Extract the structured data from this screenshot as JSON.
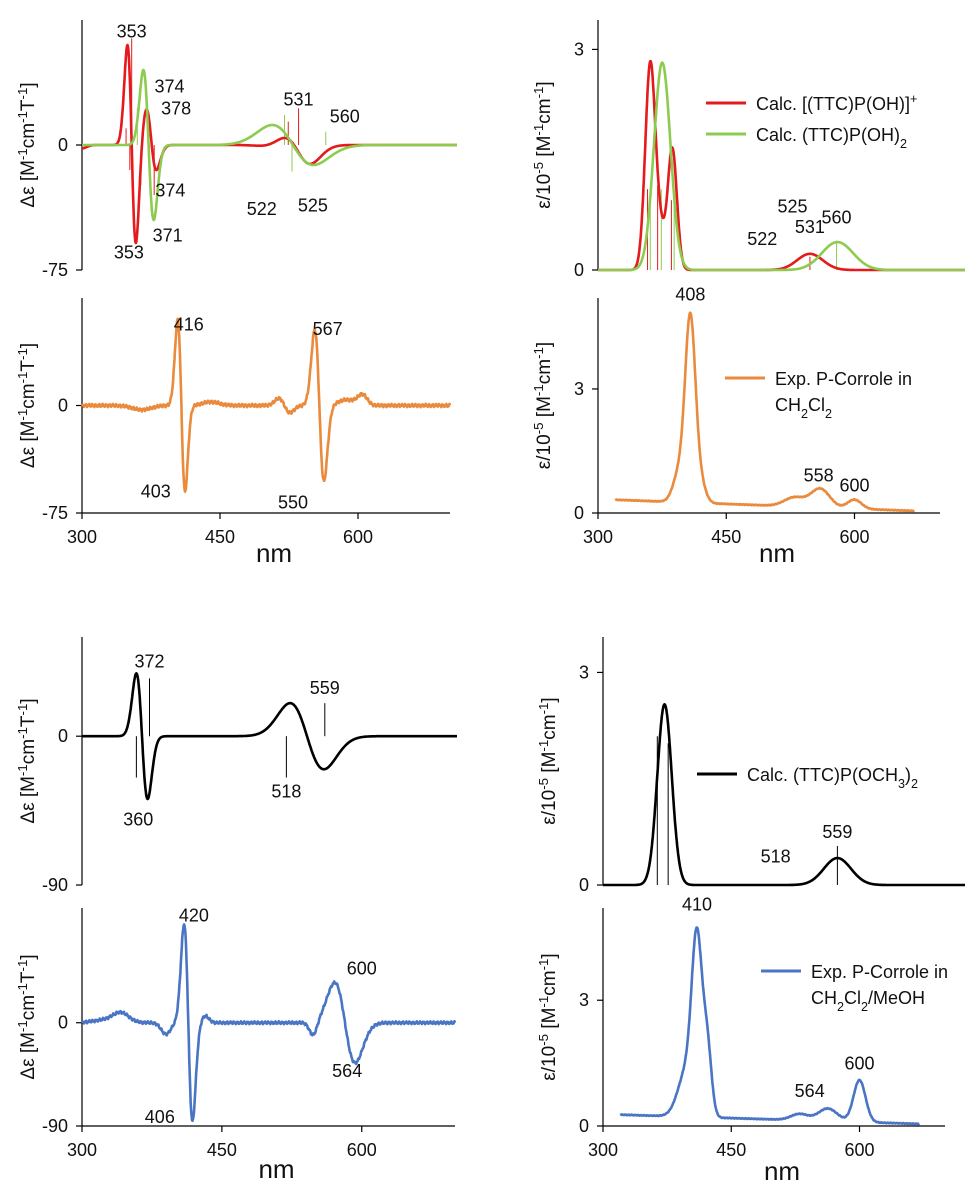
{
  "colors": {
    "red": "#e41a1c",
    "green": "#8dcb50",
    "orange": "#ea8a3c",
    "black": "#000000",
    "blue": "#4a74c4"
  },
  "chart_data": [
    {
      "id": "calc-ttc-poh-mcd",
      "type": "line",
      "ylabel": "Δε [M⁻¹cm⁻¹T⁻¹]",
      "xlim": [
        300,
        700
      ],
      "ylim": [
        -75,
        75
      ],
      "yticks": [
        {
          "v": 0,
          "label": "0"
        },
        {
          "v": -75,
          "label": "-75"
        }
      ],
      "series": [
        {
          "color": "red",
          "peaks": [
            {
              "type": "a",
              "x0": 353,
              "a": 60,
              "w": 4.5
            },
            {
              "type": "a",
              "x0": 374,
              "a": 22,
              "w": 5.5
            },
            {
              "type": "g",
              "x0": 522,
              "a": -5,
              "w": 18
            },
            {
              "type": "a",
              "x0": 531,
              "a": 9,
              "w": 14
            },
            {
              "type": "g",
              "x0": 300,
              "a": -2,
              "w": 5
            },
            {
              "type": "g",
              "x0": 380,
              "a": 7,
              "w": 4
            }
          ]
        },
        {
          "color": "green",
          "peaks": [
            {
              "type": "a",
              "x0": 371,
              "a": 45,
              "w": 5.5
            },
            {
              "type": "a",
              "x0": 525,
              "a": 12,
              "w": 22
            }
          ]
        }
      ],
      "sticks": [
        {
          "x": 347,
          "y": 10,
          "color": "red"
        },
        {
          "x": 351,
          "y": -15,
          "color": "red"
        },
        {
          "x": 353,
          "y": 64,
          "color": "red"
        },
        {
          "x": 359,
          "y": 22,
          "color": "green"
        },
        {
          "x": 363,
          "y": -24,
          "color": "green"
        },
        {
          "x": 372,
          "y": -22,
          "color": "red"
        },
        {
          "x": 377,
          "y": -30,
          "color": "red"
        },
        {
          "x": 516,
          "y": 18,
          "color": "green"
        },
        {
          "x": 520,
          "y": 14,
          "color": "red"
        },
        {
          "x": 524,
          "y": -16,
          "color": "green"
        },
        {
          "x": 531,
          "y": 22,
          "color": "red"
        },
        {
          "x": 560,
          "y": 8,
          "color": "green"
        }
      ],
      "annotations": [
        {
          "x": 353,
          "y": 61,
          "text": "353",
          "pos": "above"
        },
        {
          "x": 373,
          "y": 28,
          "text": "374",
          "pos": "above-right"
        },
        {
          "x": 378,
          "y": 22,
          "text": "378",
          "pos": "right"
        },
        {
          "x": 374,
          "y": -19,
          "text": "374",
          "pos": "below-right"
        },
        {
          "x": 371,
          "y": -46,
          "text": "371",
          "pos": "below-right"
        },
        {
          "x": 350,
          "y": -56,
          "text": "353",
          "pos": "below"
        },
        {
          "x": 531,
          "y": 20,
          "text": "531",
          "pos": "above"
        },
        {
          "x": 560,
          "y": 10,
          "text": "560",
          "pos": "above-right"
        },
        {
          "x": 512,
          "y": -30,
          "text": "522",
          "pos": "below-left"
        },
        {
          "x": 526,
          "y": -28,
          "text": "525",
          "pos": "below-right"
        }
      ]
    },
    {
      "id": "calc-ttc-poh-abs",
      "type": "line",
      "ylabel": "ε/10⁻⁵ [M⁻¹cm⁻¹]",
      "xlim": [
        300,
        700
      ],
      "ylim": [
        0,
        3.4
      ],
      "yticks": [
        {
          "v": 3,
          "label": "3"
        },
        {
          "v": 0,
          "label": "0"
        }
      ],
      "legend": [
        {
          "color": "red",
          "label": "Calc. [(TTC)P(OH)]⁺"
        },
        {
          "color": "green",
          "label": "Calc. (TTC)P(OH)₂"
        }
      ],
      "series": [
        {
          "color": "red",
          "peaks": [
            {
              "type": "g",
              "x0": 357,
              "a": 2.8,
              "w": 5.5
            },
            {
              "type": "g",
              "x0": 381,
              "a": 1.65,
              "w": 5
            },
            {
              "type": "g",
              "x0": 368,
              "a": 0.45,
              "w": 5
            },
            {
              "type": "g",
              "x0": 531,
              "a": 0.22,
              "w": 14
            }
          ]
        },
        {
          "color": "green",
          "peaks": [
            {
              "type": "g",
              "x0": 370,
              "a": 2.82,
              "w": 9
            },
            {
              "type": "g",
              "x0": 561,
              "a": 0.38,
              "w": 17
            }
          ]
        }
      ],
      "sticks": [
        {
          "x": 354,
          "y": 1.1,
          "color": "red"
        },
        {
          "x": 357,
          "y": 1.05,
          "color": "green"
        },
        {
          "x": 365,
          "y": 1.15,
          "color": "red"
        },
        {
          "x": 369,
          "y": 1.1,
          "color": "green"
        },
        {
          "x": 380,
          "y": 0.95,
          "color": "red"
        },
        {
          "x": 383,
          "y": 1.0,
          "color": "green"
        },
        {
          "x": 531,
          "y": 0.18,
          "color": "red"
        },
        {
          "x": 560,
          "y": 0.4,
          "color": "green"
        }
      ],
      "annotations": [
        {
          "x": 512,
          "y": 0.7,
          "text": "525",
          "pos": "above"
        },
        {
          "x": 502,
          "y": 0.42,
          "text": "522",
          "pos": "left"
        },
        {
          "x": 531,
          "y": 0.42,
          "text": "531",
          "pos": "above"
        },
        {
          "x": 560,
          "y": 0.55,
          "text": "560",
          "pos": "above"
        }
      ]
    },
    {
      "id": "exp-p-corrole-ch2cl2-mcd",
      "type": "line",
      "ylabel": "Δε [M⁻¹cm⁻¹T⁻¹]",
      "xlabel": "nm",
      "xlim": [
        300,
        700
      ],
      "ylim": [
        -75,
        75
      ],
      "xticks": [
        300,
        450,
        600
      ],
      "yticks": [
        {
          "v": 0,
          "label": "0"
        },
        {
          "v": -75,
          "label": "-75"
        }
      ],
      "series": [
        {
          "color": "orange",
          "peaks": [
            {
              "type": "g",
              "x0": 365,
              "a": -3,
              "w": 10
            },
            {
              "type": "a",
              "x0": 408,
              "a": 60,
              "w": 4
            },
            {
              "type": "g",
              "x0": 440,
              "a": 2.5,
              "w": 9
            },
            {
              "type": "a",
              "x0": 520,
              "a": 5,
              "w": 6
            },
            {
              "type": "a",
              "x0": 558,
              "a": 53,
              "w": 5
            },
            {
              "type": "g",
              "x0": 605,
              "a": 7,
              "w": 5
            },
            {
              "type": "g",
              "x0": 588,
              "a": 4,
              "w": 10
            }
          ],
          "noise": 1.2
        }
      ],
      "annotations": [
        {
          "x": 416,
          "y": 48,
          "text": "416",
          "pos": "above"
        },
        {
          "x": 403,
          "y": -60,
          "text": "403",
          "pos": "left"
        },
        {
          "x": 567,
          "y": 45,
          "text": "567",
          "pos": "above"
        },
        {
          "x": 550,
          "y": -58,
          "text": "550",
          "pos": "below-left"
        }
      ]
    },
    {
      "id": "exp-p-corrole-ch2cl2-abs",
      "type": "line",
      "ylabel": "ε/10⁻⁵ [M⁻¹cm⁻¹]",
      "xlabel": "nm",
      "xlim": [
        300,
        700
      ],
      "ylim": [
        0,
        5.2
      ],
      "xticks": [
        300,
        450,
        600
      ],
      "yticks": [
        {
          "v": 3,
          "label": "3"
        },
        {
          "v": 0,
          "label": "0"
        }
      ],
      "legend": [
        {
          "color": "orange",
          "label": "Exp. P-Corrole in CH₂Cl₂"
        }
      ],
      "series": [
        {
          "color": "orange",
          "domain": [
            320,
            670
          ],
          "base": {
            "from": 0.32,
            "to": 0.05
          },
          "peaks": [
            {
              "type": "g",
              "x0": 408,
              "a": 4.4,
              "w": 6
            },
            {
              "type": "g",
              "x0": 395,
              "a": 0.7,
              "w": 7
            },
            {
              "type": "g",
              "x0": 420,
              "a": 0.45,
              "w": 6
            },
            {
              "type": "g",
              "x0": 530,
              "a": 0.22,
              "w": 12
            },
            {
              "type": "g",
              "x0": 560,
              "a": 0.45,
              "w": 11
            },
            {
              "type": "g",
              "x0": 600,
              "a": 0.22,
              "w": 8
            }
          ],
          "noise": 0.01
        }
      ],
      "annotations": [
        {
          "x": 408,
          "y": 5.0,
          "text": "408",
          "pos": "above"
        },
        {
          "x": 558,
          "y": 0.62,
          "text": "558",
          "pos": "above"
        },
        {
          "x": 600,
          "y": 0.38,
          "text": "600",
          "pos": "above"
        }
      ]
    },
    {
      "id": "calc-ttc-poch3-mcd",
      "type": "line",
      "ylabel": "Δε [M⁻¹cm⁻¹T⁻¹]",
      "xlim": [
        300,
        700
      ],
      "ylim": [
        -90,
        60
      ],
      "yticks": [
        {
          "v": 0,
          "label": "0"
        },
        {
          "v": -90,
          "label": "-90"
        }
      ],
      "series": [
        {
          "color": "black",
          "peaks": [
            {
              "type": "a",
              "x0": 364,
              "a": 38,
              "w": 6
            },
            {
              "type": "a",
              "x0": 540,
              "a": 20,
              "w": 18
            }
          ]
        }
      ],
      "sticks": [
        {
          "x": 358,
          "y": -25,
          "color": "black"
        },
        {
          "x": 372,
          "y": 35,
          "color": "black"
        },
        {
          "x": 518,
          "y": -25,
          "color": "black"
        },
        {
          "x": 559,
          "y": 20,
          "color": "black"
        }
      ],
      "annotations": [
        {
          "x": 372,
          "y": 38,
          "text": "372",
          "pos": "above"
        },
        {
          "x": 360,
          "y": -42,
          "text": "360",
          "pos": "below"
        },
        {
          "x": 559,
          "y": 22,
          "text": "559",
          "pos": "above"
        },
        {
          "x": 518,
          "y": -25,
          "text": "518",
          "pos": "below"
        }
      ]
    },
    {
      "id": "calc-ttc-poch3-abs",
      "type": "line",
      "ylabel": "ε/10⁻⁵ [M⁻¹cm⁻¹]",
      "xlim": [
        300,
        700
      ],
      "ylim": [
        0,
        3.5
      ],
      "yticks": [
        {
          "v": 3,
          "label": "3"
        },
        {
          "v": 0,
          "label": "0"
        }
      ],
      "legend": [
        {
          "color": "black",
          "label": "Calc. (TTC)P(OCH₃)₂"
        }
      ],
      "series": [
        {
          "color": "black",
          "peaks": [
            {
              "type": "g",
              "x0": 368,
              "a": 2.55,
              "w": 8
            },
            {
              "type": "g",
              "x0": 559,
              "a": 0.38,
              "w": 15
            }
          ]
        }
      ],
      "sticks": [
        {
          "x": 360,
          "y": 2.1,
          "color": "black"
        },
        {
          "x": 372,
          "y": 2.0,
          "color": "black"
        },
        {
          "x": 559,
          "y": 0.55,
          "color": "black"
        }
      ],
      "annotations": [
        {
          "x": 514,
          "y": 0.4,
          "text": "518",
          "pos": "left"
        },
        {
          "x": 559,
          "y": 0.58,
          "text": "559",
          "pos": "above"
        }
      ]
    },
    {
      "id": "exp-p-corrole-ch2cl2-meoh-mcd",
      "type": "line",
      "ylabel": "Δε [M⁻¹cm⁻¹T⁻¹]",
      "xlabel": "nm",
      "xlim": [
        300,
        700
      ],
      "ylim": [
        -90,
        100
      ],
      "xticks": [
        300,
        450,
        600
      ],
      "yticks": [
        {
          "v": 0,
          "label": "0"
        },
        {
          "v": -90,
          "label": "-90"
        }
      ],
      "series": [
        {
          "color": "blue",
          "peaks": [
            {
              "type": "g",
              "x0": 342,
              "a": 7,
              "w": 8
            },
            {
              "type": "g",
              "x0": 330,
              "a": 3,
              "w": 15
            },
            {
              "type": "g",
              "x0": 390,
              "a": -10,
              "w": 5
            },
            {
              "type": "a",
              "x0": 414,
              "a": 86,
              "w": 4.5
            },
            {
              "type": "g",
              "x0": 432,
              "a": 6,
              "w": 4
            },
            {
              "type": "g",
              "x0": 548,
              "a": -12,
              "w": 4
            },
            {
              "type": "a",
              "x0": 582,
              "a": 35,
              "w": 11
            }
          ],
          "noise": 1.3
        }
      ],
      "annotations": [
        {
          "x": 420,
          "y": 83,
          "text": "420",
          "pos": "above"
        },
        {
          "x": 406,
          "y": -82,
          "text": "406",
          "pos": "left"
        },
        {
          "x": 600,
          "y": 37,
          "text": "600",
          "pos": "above"
        },
        {
          "x": 564,
          "y": -30,
          "text": "564",
          "pos": "below-right"
        }
      ]
    },
    {
      "id": "exp-p-corrole-ch2cl2-meoh-abs",
      "type": "line",
      "ylabel": "ε/10⁻⁵ [M⁻¹cm⁻¹]",
      "xlabel": "nm",
      "xlim": [
        300,
        700
      ],
      "ylim": [
        0,
        5.2
      ],
      "xticks": [
        300,
        450,
        600
      ],
      "yticks": [
        {
          "v": 3,
          "label": "3"
        },
        {
          "v": 0,
          "label": "0"
        }
      ],
      "legend": [
        {
          "color": "blue",
          "label": "Exp. P-Corrole in CH₂Cl₂/MeOH"
        }
      ],
      "series": [
        {
          "color": "blue",
          "domain": [
            320,
            670
          ],
          "base": {
            "from": 0.27,
            "to": 0.05
          },
          "peaks": [
            {
              "type": "g",
              "x0": 410,
              "a": 3.9,
              "w": 6
            },
            {
              "type": "g",
              "x0": 398,
              "a": 1.1,
              "w": 10
            },
            {
              "type": "g",
              "x0": 422,
              "a": 1.6,
              "w": 5
            },
            {
              "type": "g",
              "x0": 530,
              "a": 0.15,
              "w": 10
            },
            {
              "type": "g",
              "x0": 563,
              "a": 0.3,
              "w": 11
            },
            {
              "type": "g",
              "x0": 600,
              "a": 1.0,
              "w": 7
            }
          ],
          "noise": 0.01
        }
      ],
      "annotations": [
        {
          "x": 410,
          "y": 5.0,
          "text": "410",
          "pos": "above"
        },
        {
          "x": 564,
          "y": 0.55,
          "text": "564",
          "pos": "above-left"
        },
        {
          "x": 600,
          "y": 1.2,
          "text": "600",
          "pos": "above"
        }
      ]
    }
  ]
}
